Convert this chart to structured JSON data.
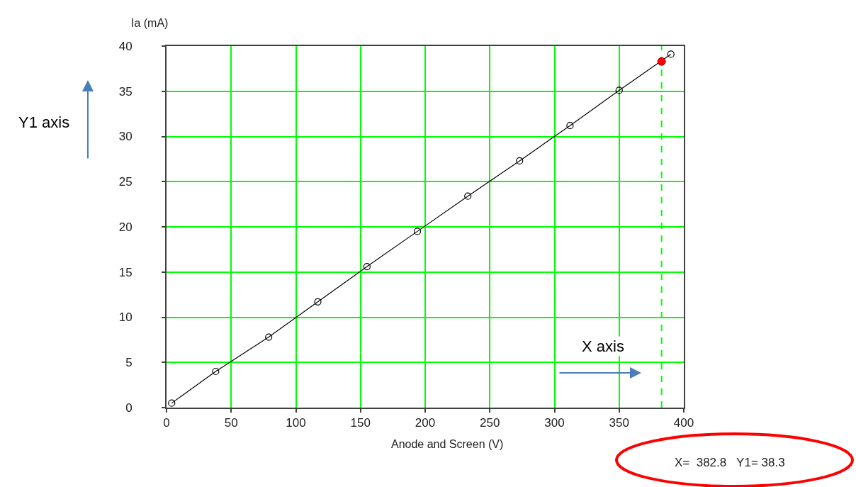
{
  "chart_data": {
    "type": "line",
    "xlabel": "Anode and Screen (V)",
    "ylabel": "Ia (mA)",
    "annotations": [
      "Y1 axis",
      "X axis",
      "X=  382.8   Y1= 38.3"
    ],
    "series": [
      {
        "color": "#000000",
        "x": [
          4,
          38,
          79,
          117,
          155,
          194,
          233,
          273,
          312,
          350,
          390
        ],
        "values": [
          0.5,
          4.0,
          7.8,
          11.7,
          15.6,
          19.5,
          23.4,
          27.3,
          31.2,
          35.1,
          39.1
        ]
      },
      {
        "type": "scatter",
        "color": "#ff0000",
        "x": [
          382.8
        ],
        "values": [
          38.3
        ]
      }
    ],
    "xlim": [
      0,
      400
    ],
    "xticks": [
      0,
      50,
      100,
      150,
      200,
      250,
      300,
      350,
      400
    ],
    "ylim": [
      0,
      40
    ],
    "yticks": [
      0,
      5,
      10,
      15,
      20,
      25,
      30,
      35,
      40
    ],
    "grid": true,
    "marker": "circle",
    "ref_lines": [
      {
        "axis": "x",
        "value": 382.8,
        "color": "#00ff00",
        "line_style": "dashed"
      }
    ]
  }
}
